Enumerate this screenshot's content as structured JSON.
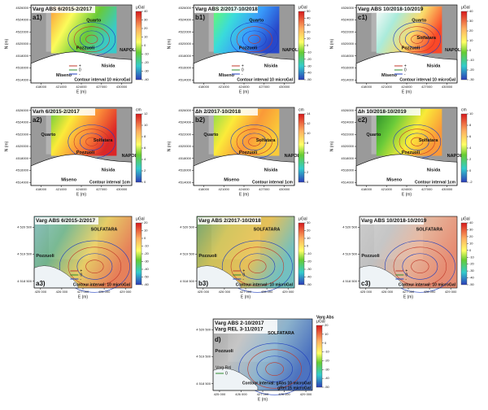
{
  "rows": [
    {
      "xlabel": "E (m)",
      "ylabel": "N (m)",
      "xlim": [
        416500,
        431500
      ],
      "ylim": [
        4513500,
        4526500
      ],
      "xticks": [
        418000,
        421000,
        424000,
        427000,
        430000
      ],
      "yticks": [
        4514000,
        4516000,
        4518000,
        4520000,
        4522000,
        4524000,
        4526000
      ],
      "panels": [
        {
          "label": "a1)",
          "title": "Varg ABS 6/2015-2/2017",
          "places": [
            "Quarto",
            "Pozzuoli",
            "Nisida",
            "NAPOLI",
            "Miseno"
          ],
          "legend": [
            "+",
            "0",
            "-"
          ],
          "note": "Contour interval 10 microGal",
          "unit": "μGal",
          "scale": [
            40,
            30,
            20,
            10,
            0,
            -10,
            -20,
            -30,
            -40
          ]
        },
        {
          "label": "b1)",
          "title": "Varg ABS 2/2017-10/2018",
          "places": [
            "Quarto",
            "Pozzuoli",
            "Nisida",
            "NAPOLI",
            "Miseno"
          ],
          "legend": [
            "+",
            "0",
            "-"
          ],
          "note": "Contour interval 10 microGal",
          "unit": "μGal",
          "scale": [
            50,
            40,
            30,
            20,
            10,
            0,
            -10,
            -20,
            -30,
            -40,
            -50
          ]
        },
        {
          "label": "c1)",
          "title": "Varg ABS 10/2018-10/2019",
          "places": [
            "Quarto",
            "Pozzuoli",
            "Nisida",
            "NAPOLI",
            "Miseno",
            "Solfatara"
          ],
          "legend": [
            "+",
            "0",
            "-"
          ],
          "note": "Contour interval 10 microGal",
          "unit": "μGal",
          "scale": [
            40,
            30,
            20,
            10,
            0,
            -10,
            -20,
            -30
          ]
        }
      ]
    },
    {
      "xlabel": "E (m)",
      "ylabel": "N (m)",
      "xlim": [
        416500,
        431500
      ],
      "ylim": [
        4513500,
        4526500
      ],
      "xticks": [
        418000,
        421000,
        424000,
        427000,
        430000
      ],
      "yticks": [
        4514000,
        4516000,
        4518000,
        4520000,
        4522000,
        4524000,
        4526000
      ],
      "panels": [
        {
          "label": "a2)",
          "title": "Varh 6/2015-2/2017",
          "places": [
            "Quarto",
            "Pozzuoli",
            "Nisida",
            "NAPOLI",
            "Miseno",
            "Solfatara"
          ],
          "note": "Contour interval 1cm",
          "unit": "cm",
          "scale": [
            12,
            10,
            8,
            6,
            4,
            2,
            0
          ]
        },
        {
          "label": "b2)",
          "title": "Δh 2/2017-10/2018",
          "places": [
            "Quarto",
            "Pozzuoli",
            "Nisida",
            "NAPOLI",
            "Miseno",
            "Solfatara"
          ],
          "note": "Contour interval 1cm",
          "unit": "cm",
          "scale": [
            14,
            12,
            10,
            8,
            6,
            4,
            2,
            0
          ]
        },
        {
          "label": "c2)",
          "title": "Δh 10/2018-10/2019",
          "places": [
            "Quarto",
            "Pozzuoli",
            "Nisida",
            "NAPOLI",
            "Miseno",
            "Solfatara"
          ],
          "note": "Contour interval 1cm",
          "unit": "cm",
          "scale": [
            10,
            8,
            6,
            4,
            2,
            0,
            -2
          ]
        }
      ]
    },
    {
      "xlabel": "E (m)",
      "xlim": [
        424700,
        429300
      ],
      "ylim": [
        4518250,
        4520900
      ],
      "xticks": [
        {
          "value": 425000,
          "label": "425 000"
        },
        {
          "value": 426000,
          "label": "426 000"
        },
        {
          "value": 427000,
          "label": "427 000"
        },
        {
          "value": 428000,
          "label": "428 000"
        },
        {
          "value": 429000,
          "label": "429 000"
        }
      ],
      "yticks": [
        {
          "value": 4518500,
          "label": "4 518 500"
        },
        {
          "value": 4519500,
          "label": "4 519 500"
        },
        {
          "value": 4520500,
          "label": "4 520 500"
        }
      ],
      "panels": [
        {
          "label": "a3)",
          "title": "Varg ABS 6/2015-2/2017",
          "places": [
            "SOLFATARA",
            "Pozzuoli"
          ],
          "legend": [
            "+",
            "0",
            "-"
          ],
          "note": "Contour interval: 10 microGal",
          "unit": "μGal",
          "scale": [
            20,
            10,
            0,
            -10,
            -20,
            -30,
            -40,
            -50,
            -60
          ]
        },
        {
          "label": "b3)",
          "title": "Varg ABS 2/2017-10/2018",
          "places": [
            "SOLFATARA",
            "Pozzuoli"
          ],
          "legend": [
            "+",
            "0",
            "-"
          ],
          "note": "Contour interval: 10 microGal",
          "unit": "μGal",
          "scale": [
            30,
            20,
            10,
            0,
            -10,
            -20,
            -30,
            -40,
            -50
          ]
        },
        {
          "label": "c3)",
          "title": "Varg ABS 10/2018-10/2019",
          "places": [
            "SOLFATARA",
            "Pozzuoli"
          ],
          "legend": [
            "+",
            "0",
            "-"
          ],
          "note": "Contour interval: 10 microGal",
          "unit": "μGal",
          "scale": [
            40,
            30,
            20,
            10,
            0,
            -10,
            -20,
            -30,
            -40,
            -50
          ]
        }
      ]
    },
    {
      "xlabel": "E (m)",
      "xlim": [
        424700,
        429300
      ],
      "ylim": [
        4518250,
        4520900
      ],
      "xticks": [
        {
          "value": 425000,
          "label": "425 000"
        },
        {
          "value": 426000,
          "label": "426 000"
        },
        {
          "value": 427000,
          "label": "427 000"
        },
        {
          "value": 428000,
          "label": "428 000"
        },
        {
          "value": 429000,
          "label": "429 000"
        }
      ],
      "yticks": [
        {
          "value": 4518500,
          "label": "4 518 500"
        },
        {
          "value": 4519500,
          "label": "4 519 500"
        },
        {
          "value": 4520500,
          "label": "4 520 500"
        }
      ],
      "panels": [
        {
          "label": "d)",
          "title": "Varg ABS 2-10/2017",
          "subtitle": "Varg REL 3-11/2017",
          "places": [
            "SOLFATARA",
            "Pozzuoli"
          ],
          "legend_title": "Varg Rel",
          "legend": [
            "0"
          ],
          "note": "Contour interval: gAbs 10 microGal",
          "note2": "gRel 15 microGal",
          "unit_title": "Varg Abs",
          "unit": "μGal",
          "scale": [
            20,
            10,
            0,
            -10,
            -20,
            -30,
            -40,
            -50
          ]
        }
      ]
    }
  ]
}
